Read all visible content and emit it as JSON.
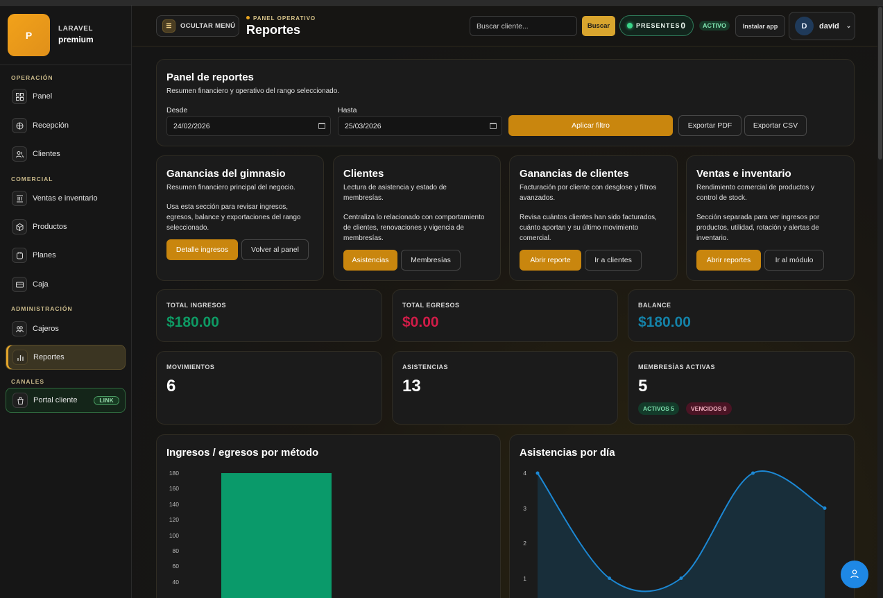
{
  "brand": {
    "logo_letter": "P",
    "top": "LARAVEL",
    "sub": "premium"
  },
  "sidebar": {
    "sections": [
      "OPERACIÓN",
      "COMERCIAL",
      "ADMINISTRACIÓN",
      "CANALES"
    ],
    "items": [
      {
        "label": "Panel",
        "icon": "dashboard-icon"
      },
      {
        "label": "Recepción",
        "icon": "reception-icon"
      },
      {
        "label": "Clientes",
        "icon": "users-icon"
      },
      {
        "label": "Ventas e inventario",
        "icon": "inventory-icon"
      },
      {
        "label": "Productos",
        "icon": "box-icon"
      },
      {
        "label": "Planes",
        "icon": "plan-icon"
      },
      {
        "label": "Caja",
        "icon": "cash-icon"
      },
      {
        "label": "Cajeros",
        "icon": "cashiers-icon"
      },
      {
        "label": "Reportes",
        "icon": "chart-icon"
      },
      {
        "label": "Portal cliente",
        "icon": "portal-icon",
        "badge": "LINK"
      }
    ]
  },
  "header": {
    "menu_button": "OCULTAR MENÚ",
    "kicker": "PANEL OPERATIVO",
    "title": "Reportes",
    "search_placeholder": "Buscar cliente...",
    "search_button": "Buscar",
    "presentes_label": "PRESENTES",
    "presentes_count": "0",
    "status": "ACTIVO",
    "install_button": "Instalar app",
    "user_initial": "D",
    "user_name": "david"
  },
  "filters": {
    "title": "Panel de reportes",
    "subtitle": "Resumen financiero y operativo del rango seleccionado.",
    "from_label": "Desde",
    "from_value": "24/02/2026",
    "to_label": "Hasta",
    "to_value": "25/03/2026",
    "apply": "Aplicar filtro",
    "export_pdf": "Exportar PDF",
    "export_csv": "Exportar CSV"
  },
  "sections": [
    {
      "title": "Ganancias del gimnasio",
      "lead": "Resumen financiero principal del negocio.",
      "body": "Usa esta sección para revisar ingresos, egresos, balance y exportaciones del rango seleccionado.",
      "primary": "Detalle ingresos",
      "secondary": "Volver al panel"
    },
    {
      "title": "Clientes",
      "lead": "Lectura de asistencia y estado de membresías.",
      "body": "Centraliza lo relacionado con comportamiento de clientes, renovaciones y vigencia de membresías.",
      "primary": "Asistencias",
      "secondary": "Membresías"
    },
    {
      "title": "Ganancias de clientes",
      "lead": "Facturación por cliente con desglose y filtros avanzados.",
      "body": "Revisa cuántos clientes han sido facturados, cuánto aportan y su último movimiento comercial.",
      "primary": "Abrir reporte",
      "secondary": "Ir a clientes"
    },
    {
      "title": "Ventas e inventario",
      "lead": "Rendimiento comercial de productos y control de stock.",
      "body": "Sección separada para ver ingresos por productos, utilidad, rotación y alertas de inventario.",
      "primary": "Abrir reportes",
      "secondary": "Ir al módulo"
    }
  ],
  "stats": {
    "total_ingresos": {
      "label": "TOTAL INGRESOS",
      "value": "$180.00",
      "color": "#0e9a64"
    },
    "total_egresos": {
      "label": "TOTAL EGRESOS",
      "value": "$0.00",
      "color": "#d11c48"
    },
    "balance": {
      "label": "BALANCE",
      "value": "$180.00",
      "color": "#1482a8"
    },
    "movimientos": {
      "label": "MOVIMIENTOS",
      "value": "6"
    },
    "asistencias": {
      "label": "ASISTENCIAS",
      "value": "13"
    },
    "membresias": {
      "label": "MEMBRESÍAS ACTIVAS",
      "value": "5",
      "activos": "ACTIVOS 5",
      "vencidos": "VENCIDOS 0"
    }
  },
  "charts": {
    "bar_title": "Ingresos / egresos por método",
    "line_title": "Asistencias por día"
  },
  "chart_data": [
    {
      "type": "bar",
      "title": "Ingresos / egresos por método",
      "y_ticks": [
        180,
        160,
        140,
        120,
        100,
        80,
        60,
        40
      ],
      "ylim": [
        0,
        180
      ],
      "values": [
        180
      ],
      "color": "#0a9a6a"
    },
    {
      "type": "area",
      "title": "Asistencias por día",
      "y_ticks": [
        4,
        3,
        2,
        1
      ],
      "ylim": [
        0,
        4
      ],
      "values": [
        4,
        1,
        1,
        4,
        3
      ],
      "color": "#1c88d4"
    }
  ],
  "fab_icon": "user-icon"
}
